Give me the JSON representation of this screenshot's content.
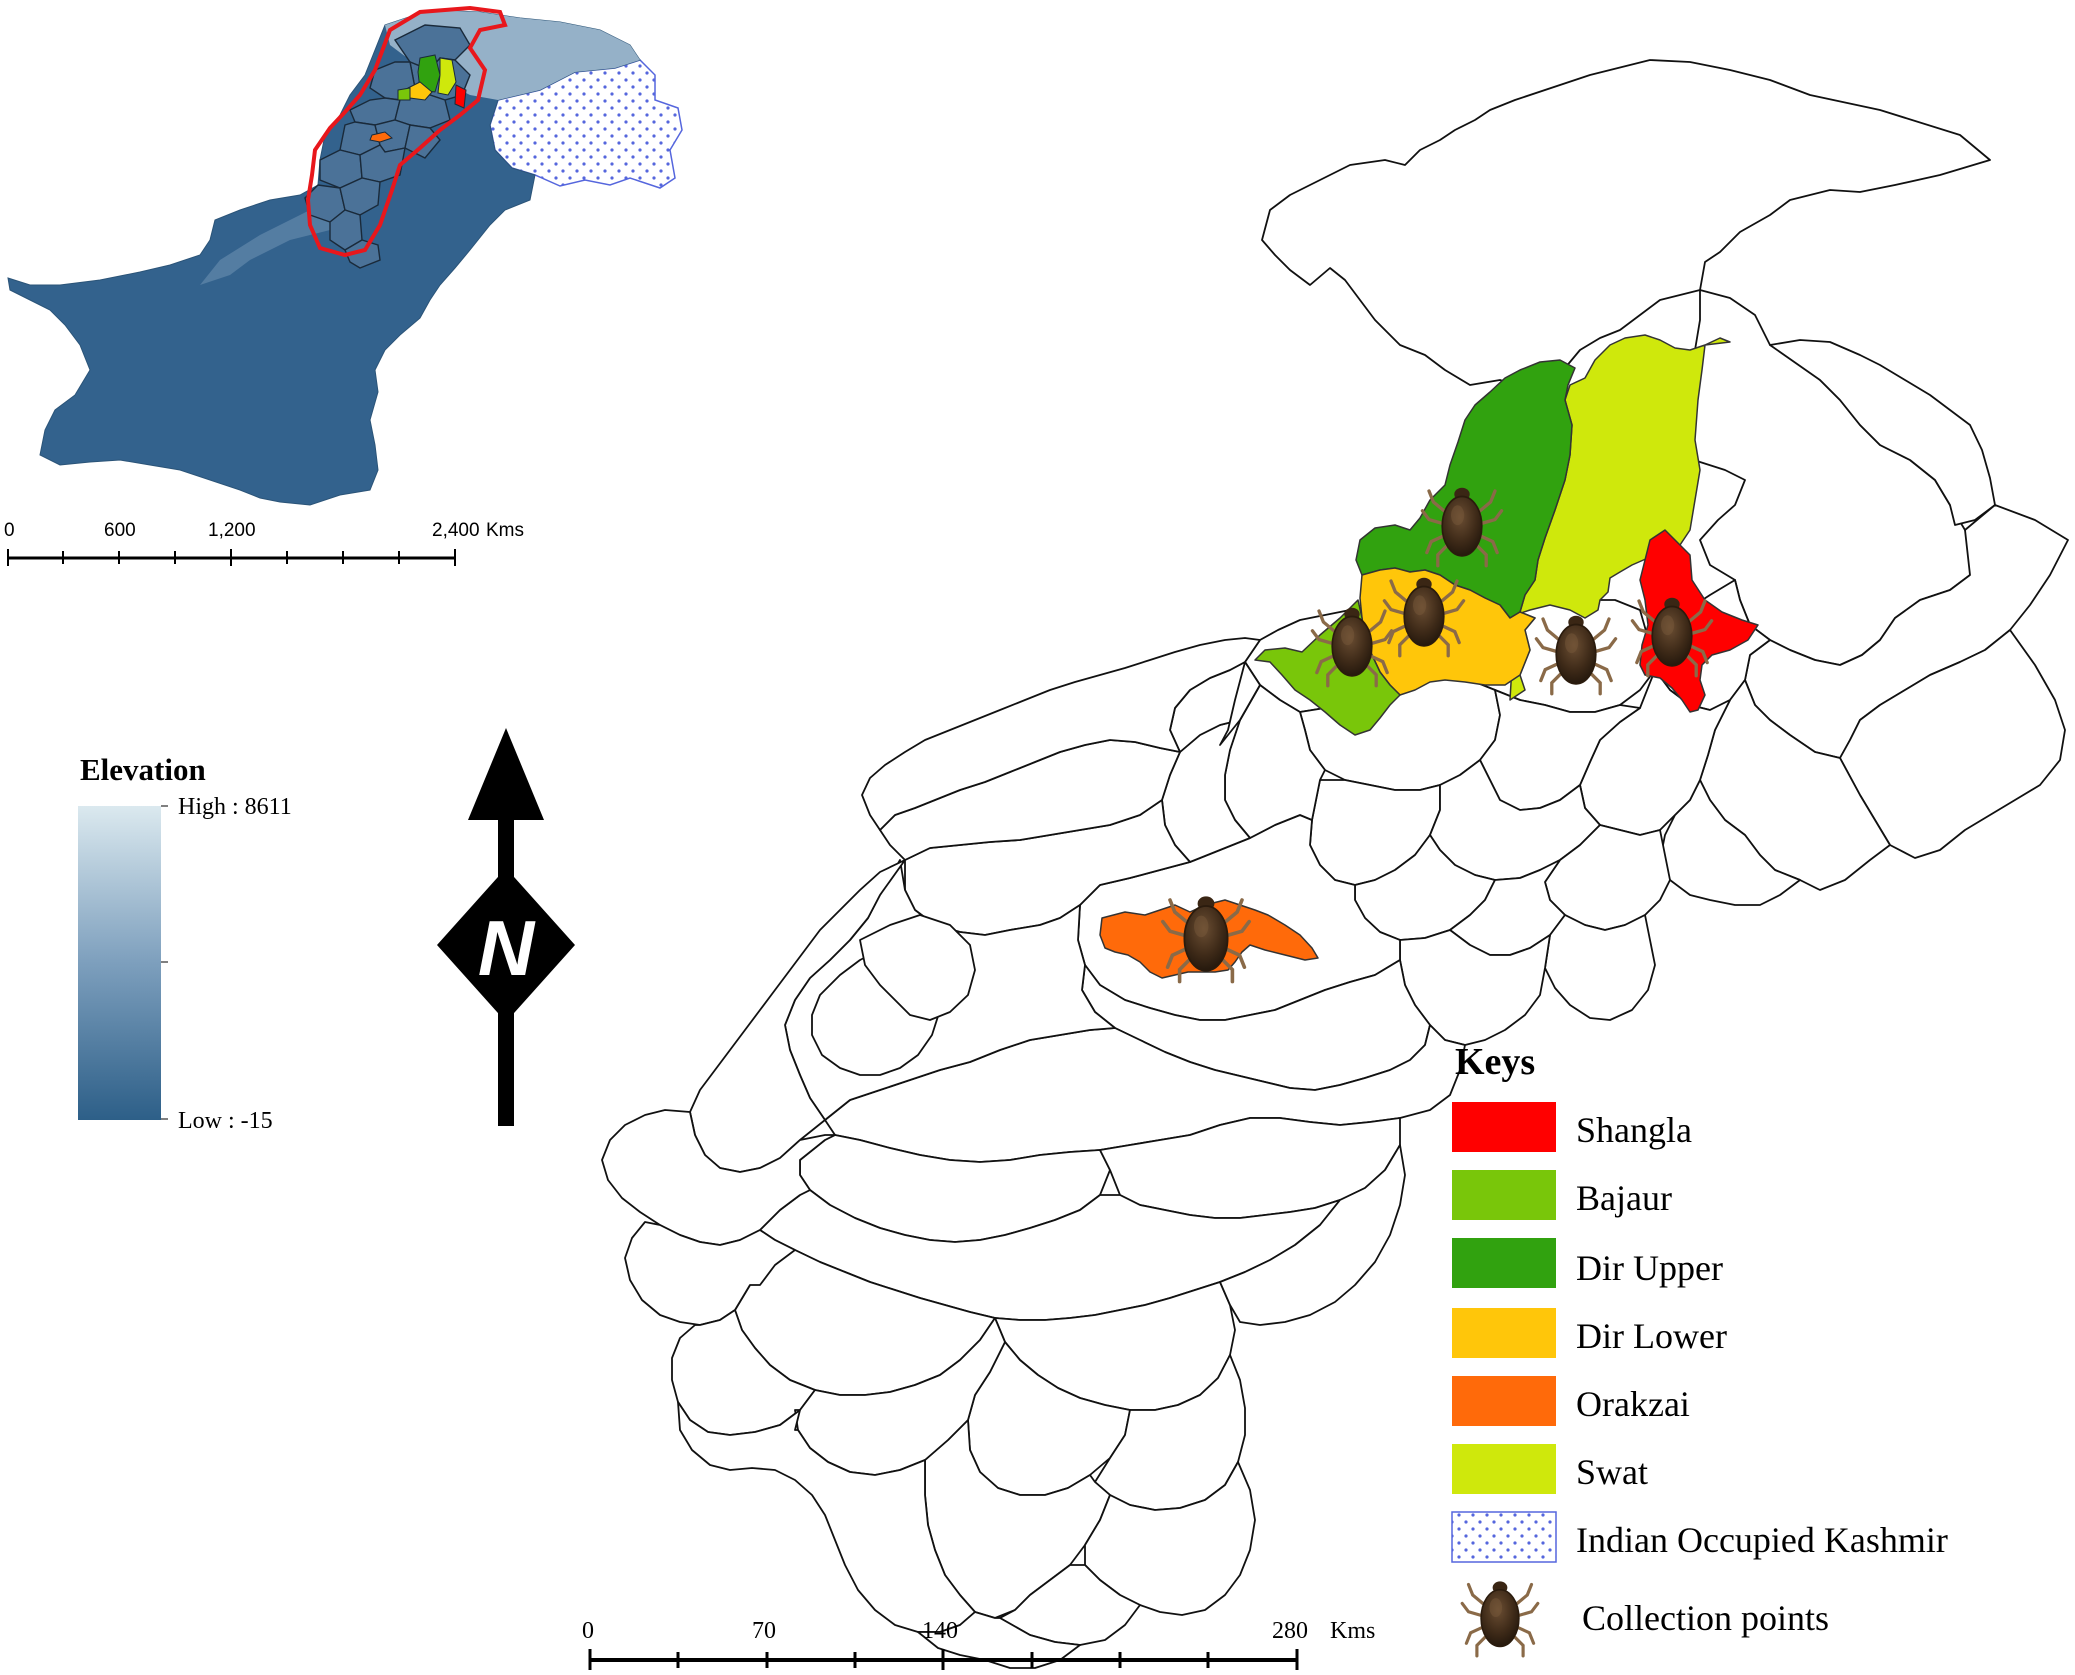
{
  "inset": {
    "scale": {
      "ticks": [
        "0",
        "600",
        "1,200",
        "2,400"
      ],
      "unit": "Kms"
    }
  },
  "elevation_legend": {
    "title": "Elevation",
    "high_label": "High : 8611",
    "low_label": "Low : -15",
    "colors": {
      "high": "#d8e8ef",
      "low": "#2d5f88"
    }
  },
  "north_arrow": {
    "label": "N"
  },
  "main_scale": {
    "ticks": [
      "0",
      "70",
      "140",
      "280"
    ],
    "unit": "Kms"
  },
  "keys": {
    "title": "Keys",
    "items": [
      {
        "label": "Shangla",
        "color": "#ff0000",
        "kind": "fill"
      },
      {
        "label": "Bajaur",
        "color": "#79c60a",
        "kind": "fill"
      },
      {
        "label": "Dir Upper",
        "color": "#31a20f",
        "kind": "fill"
      },
      {
        "label": "Dir Lower",
        "color": "#ffc60a",
        "kind": "fill"
      },
      {
        "label": "Orakzai",
        "color": "#ff6a0a",
        "kind": "fill"
      },
      {
        "label": "Swat",
        "color": "#cfe80c",
        "kind": "fill"
      },
      {
        "label": "Indian Occupied Kashmir",
        "color": "#5566dd",
        "kind": "dots"
      },
      {
        "label": "Collection points",
        "color": "#4a3420",
        "kind": "tick-icon"
      }
    ]
  }
}
